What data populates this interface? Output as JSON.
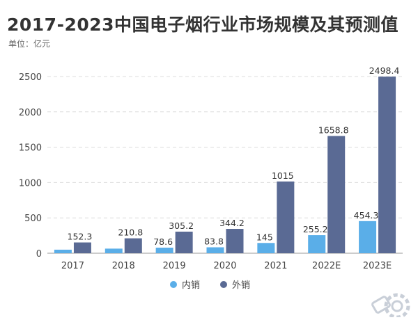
{
  "chart_data": {
    "type": "bar",
    "title": "2017-2023中国电子烟行业市场规模及其预测值",
    "subtitle": "单位：亿元",
    "categories": [
      "2017",
      "2018",
      "2019",
      "2020",
      "2021",
      "2022E",
      "2023E"
    ],
    "series": [
      {
        "name": "内销",
        "color": "#5aaee8",
        "values": [
          50,
          65,
          78.6,
          83.8,
          145,
          255.2,
          454.3
        ],
        "labels": [
          "",
          "",
          "78.6",
          "83.8",
          "145",
          "255.2",
          "454.3"
        ]
      },
      {
        "name": "外销",
        "color": "#5a6a94",
        "values": [
          152.3,
          210.8,
          305.2,
          344.2,
          1015,
          1658.8,
          2498.4
        ],
        "labels": [
          "152.3",
          "210.8",
          "305.2",
          "344.2",
          "1015",
          "1658.8",
          "2498.4"
        ]
      }
    ],
    "ylim": [
      0,
      2500
    ],
    "yticks": [
      "0",
      "500",
      "1000",
      "1500",
      "2000",
      "2500"
    ],
    "ytick_values": [
      0,
      500,
      1000,
      1500,
      2000,
      2500
    ],
    "grid": true,
    "legend_position": "bottom"
  }
}
